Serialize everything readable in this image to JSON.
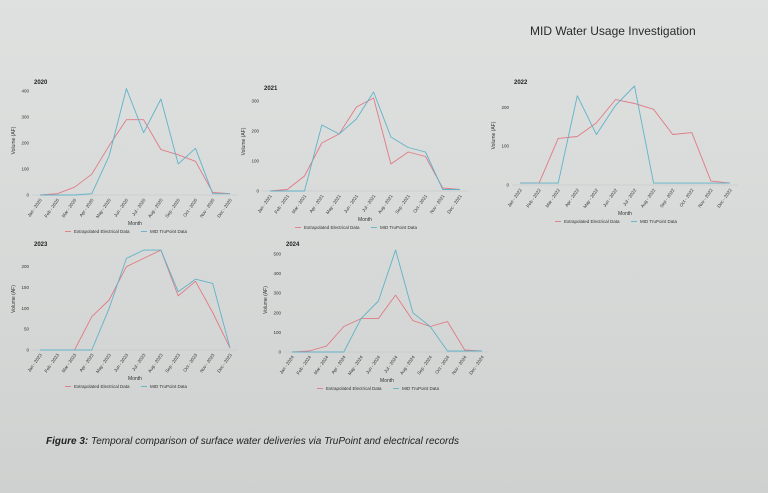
{
  "slide_title": "MID Water Usage Investigation",
  "caption": {
    "prefix": "Figure 3:",
    "text": " Temporal comparison of surface water deliveries via TruPoint and electrical records"
  },
  "colors": {
    "electrical": "#e07a85",
    "trupoint": "#5fb3c8"
  },
  "chart_data": [
    {
      "type": "line",
      "title": "2020",
      "xlabel": "Month",
      "ylabel": "Volume (AF)",
      "categories": [
        "Jan - 2020",
        "Feb - 2020",
        "Mar - 2020",
        "Apr - 2020",
        "May - 2020",
        "Jun - 2020",
        "Jul - 2020",
        "Aug - 2020",
        "Sep - 2020",
        "Oct - 2020",
        "Nov - 2020",
        "Dec - 2020"
      ],
      "yticks": [
        0,
        100,
        200,
        300,
        400
      ],
      "ylim": [
        0,
        420
      ],
      "series": [
        {
          "name": "Extrapolated Electrical Data",
          "values": [
            0,
            5,
            30,
            80,
            190,
            290,
            290,
            175,
            155,
            130,
            10,
            5
          ]
        },
        {
          "name": "MID TruPoint Data",
          "values": [
            0,
            0,
            0,
            5,
            150,
            410,
            240,
            370,
            120,
            180,
            5,
            5
          ]
        }
      ]
    },
    {
      "type": "line",
      "title": "2021",
      "xlabel": "Month",
      "ylabel": "Volume (AF)",
      "categories": [
        "Jan - 2021",
        "Feb - 2021",
        "Mar - 2021",
        "Apr - 2021",
        "May - 2021",
        "Jun - 2021",
        "Jul - 2021",
        "Aug - 2021",
        "Sep - 2021",
        "Oct - 2021",
        "Nov - 2021",
        "Dec - 2021"
      ],
      "yticks": [
        0,
        100,
        200,
        300
      ],
      "ylim": [
        0,
        330
      ],
      "series": [
        {
          "name": "Extrapolated Electrical Data",
          "values": [
            0,
            5,
            50,
            160,
            190,
            280,
            310,
            90,
            130,
            115,
            10,
            5
          ]
        },
        {
          "name": "MID TruPoint Data",
          "values": [
            0,
            0,
            0,
            220,
            190,
            240,
            330,
            180,
            145,
            130,
            5,
            5
          ]
        }
      ]
    },
    {
      "type": "line",
      "title": "2022",
      "xlabel": "Month",
      "ylabel": "Volume (AF)",
      "categories": [
        "Jan - 2022",
        "Feb - 2022",
        "Mar - 2022",
        "Apr - 2022",
        "May - 2022",
        "Jun - 2022",
        "Jul - 2022",
        "Aug - 2022",
        "Sep - 2022",
        "Oct - 2022",
        "Nov - 2022",
        "Dec - 2022"
      ],
      "yticks": [
        0,
        100,
        200
      ],
      "ylim": [
        0,
        255
      ],
      "series": [
        {
          "name": "Extrapolated Electrical Data",
          "values": [
            5,
            5,
            120,
            125,
            160,
            220,
            210,
            195,
            130,
            135,
            10,
            5
          ]
        },
        {
          "name": "MID TruPoint Data",
          "values": [
            5,
            5,
            5,
            230,
            130,
            205,
            255,
            5,
            5,
            5,
            5,
            5
          ]
        }
      ]
    },
    {
      "type": "line",
      "title": "2023",
      "xlabel": "Month",
      "ylabel": "Volume (AF)",
      "categories": [
        "Jan - 2023",
        "Feb - 2023",
        "Mar - 2023",
        "Apr - 2023",
        "May - 2023",
        "Jun - 2023",
        "Jul - 2023",
        "Aug - 2023",
        "Sep - 2023",
        "Oct - 2023",
        "Nov - 2023",
        "Dec - 2023"
      ],
      "yticks": [
        0,
        50,
        100,
        150,
        200
      ],
      "ylim": [
        0,
        245
      ],
      "series": [
        {
          "name": "Extrapolated Electrical Data",
          "values": [
            0,
            0,
            0,
            80,
            120,
            200,
            220,
            240,
            130,
            165,
            90,
            5
          ]
        },
        {
          "name": "MID TruPoint Data",
          "values": [
            0,
            0,
            0,
            0,
            100,
            220,
            240,
            240,
            140,
            170,
            160,
            5
          ]
        }
      ]
    },
    {
      "type": "line",
      "title": "2024",
      "xlabel": "Month",
      "ylabel": "Volume (AF)",
      "categories": [
        "Jan - 2024",
        "Feb - 2024",
        "Mar - 2024",
        "Apr - 2024",
        "May - 2024",
        "Jun - 2024",
        "Jul - 2024",
        "Aug - 2024",
        "Sep - 2024",
        "Oct - 2024",
        "Nov - 2024",
        "Dec - 2024"
      ],
      "yticks": [
        0,
        100,
        200,
        300,
        400,
        500
      ],
      "ylim": [
        0,
        530
      ],
      "series": [
        {
          "name": "Extrapolated Electrical Data",
          "values": [
            0,
            5,
            30,
            130,
            170,
            170,
            290,
            160,
            130,
            155,
            10,
            5
          ]
        },
        {
          "name": "MID TruPoint Data",
          "values": [
            0,
            0,
            0,
            0,
            170,
            260,
            520,
            200,
            130,
            5,
            5,
            5
          ]
        }
      ]
    }
  ]
}
